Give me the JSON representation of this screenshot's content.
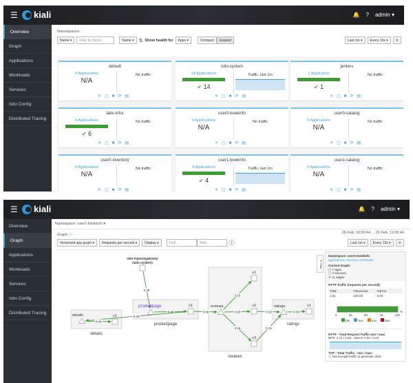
{
  "app": {
    "brand": "kiali",
    "user": "admin",
    "bell_icon": "bell-icon",
    "help_icon": "question-circle-icon"
  },
  "sidebar": [
    "Overview",
    "Graph",
    "Applications",
    "Workloads",
    "Services",
    "Istio Config",
    "Distributed Tracing"
  ],
  "overview": {
    "title": "Namespaces",
    "filter_type": "Name",
    "filter_placeholder": "Filter by Name",
    "sort": "Name",
    "health_label": "Show health for",
    "health_value": "Apps",
    "compact": "Compact",
    "expand": "Expand",
    "range": "Last 1m",
    "refresh": "Every 15s",
    "cards": [
      {
        "name": "default",
        "apps": "0 Applications",
        "status": "N/A",
        "traffic": "No traffic"
      },
      {
        "name": "istio-system",
        "apps": "14 Applications",
        "count": "14",
        "traffic": "Traffic, last 1m",
        "healthy_pct": 100
      },
      {
        "name": "jenkins",
        "apps": "1 Application",
        "count": "1",
        "traffic": "No traffic",
        "healthy_pct": 100
      },
      {
        "name": "labs-infra",
        "apps": "6 Applications",
        "count": "6",
        "traffic": "No traffic",
        "healthy_pct": 100
      },
      {
        "name": "user0-bookinfo",
        "apps": "0 Applications",
        "status": "N/A",
        "traffic": "No traffic"
      },
      {
        "name": "user0-catalog",
        "apps": "0 Applications",
        "status": "N/A",
        "traffic": "No traffic"
      },
      {
        "name": "user0-inventory",
        "apps": "0 Applications",
        "status": "N/A",
        "traffic": "No traffic"
      },
      {
        "name": "user1-bookinfo",
        "apps": "4 Applications",
        "count": "4",
        "traffic": "Traffic, last 1m",
        "healthy_pct": 100
      },
      {
        "name": "user1-catalog",
        "apps": "0 Applications",
        "status": "N/A",
        "traffic": "No traffic"
      }
    ]
  },
  "graph": {
    "namespace": "Namespace: user1-bookinfo",
    "title": "Graph",
    "timerange": "26 Feb, 10:59:44 ... 26 Feb, 11:00:44",
    "type": "Versioned app graph",
    "edge_label": "Requests per second",
    "display": "Display",
    "find_placeholder": "Find...",
    "hide_placeholder": "Hide...",
    "range": "Last 1m",
    "refresh": "Every 15s",
    "boxes": [
      "details",
      "productpage",
      "reviews",
      "ratings"
    ],
    "nodes": [
      {
        "id": "ingress",
        "label": "istio-ingressgateway (istio-system)",
        "label2": "(istio-system)",
        "label1": "istio-ingressgateway"
      },
      {
        "id": "pp",
        "label": "productpage"
      },
      {
        "id": "ppv1",
        "label": "v1"
      },
      {
        "id": "det",
        "label": "details"
      },
      {
        "id": "detv1",
        "label": "v1"
      },
      {
        "id": "rev",
        "label": "reviews"
      },
      {
        "id": "rv1",
        "label": "v1"
      },
      {
        "id": "rv2",
        "label": "v2"
      },
      {
        "id": "rv3",
        "label": "v3"
      },
      {
        "id": "rat",
        "label": "ratings"
      },
      {
        "id": "ratv1",
        "label": "v1"
      }
    ],
    "edges": [
      {
        "from": "ingress",
        "to": "pp",
        "rps": "0.49"
      },
      {
        "from": "pp",
        "to": "ppv1",
        "rps": "0.49"
      },
      {
        "from": "ppv1",
        "to": "det",
        "rps": "0.49"
      },
      {
        "from": "det",
        "to": "detv1",
        "rps": "0.49"
      },
      {
        "from": "ppv1",
        "to": "rev",
        "rps": "0.49"
      },
      {
        "from": "rev",
        "to": "rv1",
        "rps": "0.16"
      },
      {
        "from": "rev",
        "to": "rv2",
        "rps": "0.18"
      },
      {
        "from": "rev",
        "to": "rv3",
        "rps": "0.16"
      },
      {
        "from": "rv2",
        "to": "rat",
        "rps": "0.18"
      },
      {
        "from": "rv3",
        "to": "rat",
        "rps": "0.16"
      },
      {
        "from": "rat",
        "to": "ratv1",
        "rps": "0.33"
      }
    ],
    "edge_color": "#3f9c35",
    "panel": {
      "hide": "Hide",
      "namespace": "Namespace: user1-bookinfo",
      "links": "applications, services, workloads",
      "current": "Current Graph:",
      "apps": "7 apps",
      "services": "4 services",
      "edges": "11 edges",
      "http_title": "HTTP Traffic (requests per second):",
      "headers": [
        "Total",
        "%Success",
        "%Error"
      ],
      "values": [
        "1.81",
        "100.00",
        "0.00"
      ],
      "ok_pct": 100,
      "axis": [
        "0",
        "25",
        "50",
        "75",
        "100"
      ],
      "pct": "%",
      "legend": [
        {
          "label": "OK",
          "color": "#3f9c35"
        },
        {
          "label": "3xx",
          "color": "#39a5dc"
        },
        {
          "label": "4xx",
          "color": "#ec7a08"
        },
        {
          "label": "5xx",
          "color": "#cc0000"
        }
      ],
      "rps_title": "HTTP - Total Request Traffic min / max:",
      "rps_text": "RPS: 1.72 / 1.93 , %Error 0.00 / 0.00",
      "tcp_title": "TCP - Total Traffic - min / max:",
      "tcp_text": "Not enough traffic to generate chart."
    }
  }
}
